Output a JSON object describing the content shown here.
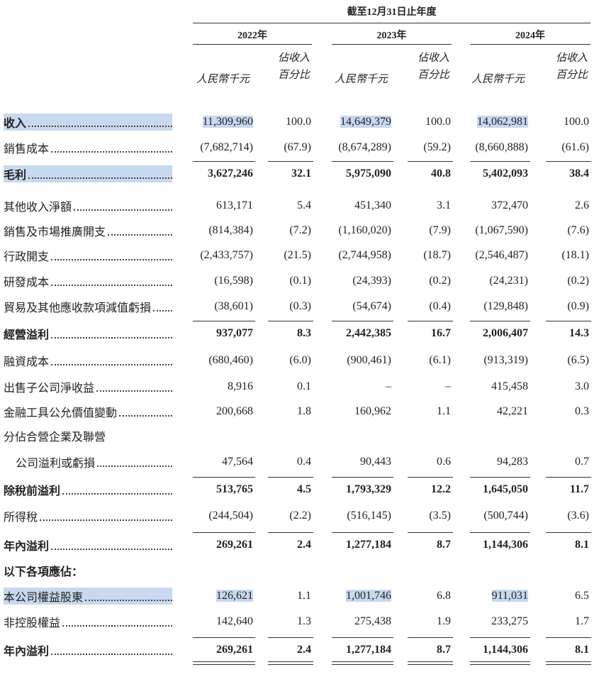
{
  "header": {
    "period": "截至12月31日止年度",
    "columns": [
      {
        "year": "2022年",
        "amount": "人民幣千元",
        "percent": "佔收入百分比"
      },
      {
        "year": "2023年",
        "amount": "人民幣千元",
        "percent": "佔收入百分比"
      },
      {
        "year": "2024年",
        "amount": "人民幣千元",
        "percent": "佔收入百分比"
      }
    ]
  },
  "table": {
    "rows": [
      {
        "label": "收入",
        "values": [
          "11,309,960",
          "100.0",
          "14,649,379",
          "100.0",
          "14,062,981",
          "100.0"
        ]
      },
      {
        "label": "銷售成本",
        "values": [
          "(7,682,714)",
          "(67.9)",
          "(8,674,289)",
          "(59.2)",
          "(8,660,888)",
          "(61.6)"
        ]
      },
      {
        "label": "毛利",
        "values": [
          "3,627,246",
          "32.1",
          "5,975,090",
          "40.8",
          "5,402,093",
          "38.4"
        ]
      },
      {
        "label": "其他收入淨額",
        "values": [
          "613,171",
          "5.4",
          "451,340",
          "3.1",
          "372,470",
          "2.6"
        ]
      },
      {
        "label": "銷售及市場推廣開支",
        "values": [
          "(814,384)",
          "(7.2)",
          "(1,160,020)",
          "(7.9)",
          "(1,067,590)",
          "(7.6)"
        ]
      },
      {
        "label": "行政開支",
        "values": [
          "(2,433,757)",
          "(21.5)",
          "(2,744,958)",
          "(18.7)",
          "(2,546,487)",
          "(18.1)"
        ]
      },
      {
        "label": "研發成本",
        "values": [
          "(16,598)",
          "(0.1)",
          "(24,393)",
          "(0.2)",
          "(24,231)",
          "(0.2)"
        ]
      },
      {
        "label": "貿易及其他應收款項減值虧損",
        "values": [
          "(38,601)",
          "(0.3)",
          "(54,674)",
          "(0.4)",
          "(129,848)",
          "(0.9)"
        ]
      },
      {
        "label": "經營溢利",
        "values": [
          "937,077",
          "8.3",
          "2,442,385",
          "16.7",
          "2,006,407",
          "14.3"
        ]
      },
      {
        "label": "融資成本",
        "values": [
          "(680,460)",
          "(6.0)",
          "(900,461)",
          "(6.1)",
          "(913,319)",
          "(6.5)"
        ]
      },
      {
        "label": "出售子公司淨收益",
        "values": [
          "8,916",
          "0.1",
          "–",
          "–",
          "415,458",
          "3.0"
        ]
      },
      {
        "label": "金融工具公允價值變動",
        "values": [
          "200,668",
          "1.8",
          "160,962",
          "1.1",
          "42,221",
          "0.3"
        ]
      },
      {
        "label": "分佔合營企業及聯營"
      },
      {
        "label": "公司溢利或虧損",
        "values": [
          "47,564",
          "0.4",
          "90,443",
          "0.6",
          "94,283",
          "0.7"
        ]
      },
      {
        "label": "除稅前溢利",
        "values": [
          "513,765",
          "4.5",
          "1,793,329",
          "12.2",
          "1,645,050",
          "11.7"
        ]
      },
      {
        "label": "所得稅",
        "values": [
          "(244,504)",
          "(2.2)",
          "(516,145)",
          "(3.5)",
          "(500,744)",
          "(3.6)"
        ]
      },
      {
        "label": "年內溢利",
        "values": [
          "269,261",
          "2.4",
          "1,277,184",
          "8.7",
          "1,144,306",
          "8.1"
        ]
      },
      {
        "label": "以下各項應佔："
      },
      {
        "label": "本公司權益股東",
        "values": [
          "126,621",
          "1.1",
          "1,001,746",
          "6.8",
          "911,031",
          "6.5"
        ]
      },
      {
        "label": "非控股權益",
        "values": [
          "142,640",
          "1.3",
          "275,438",
          "1.9",
          "233,275",
          "1.7"
        ]
      },
      {
        "label": "年內溢利",
        "values": [
          "269,261",
          "2.4",
          "1,277,184",
          "8.7",
          "1,144,306",
          "8.1"
        ]
      }
    ]
  }
}
